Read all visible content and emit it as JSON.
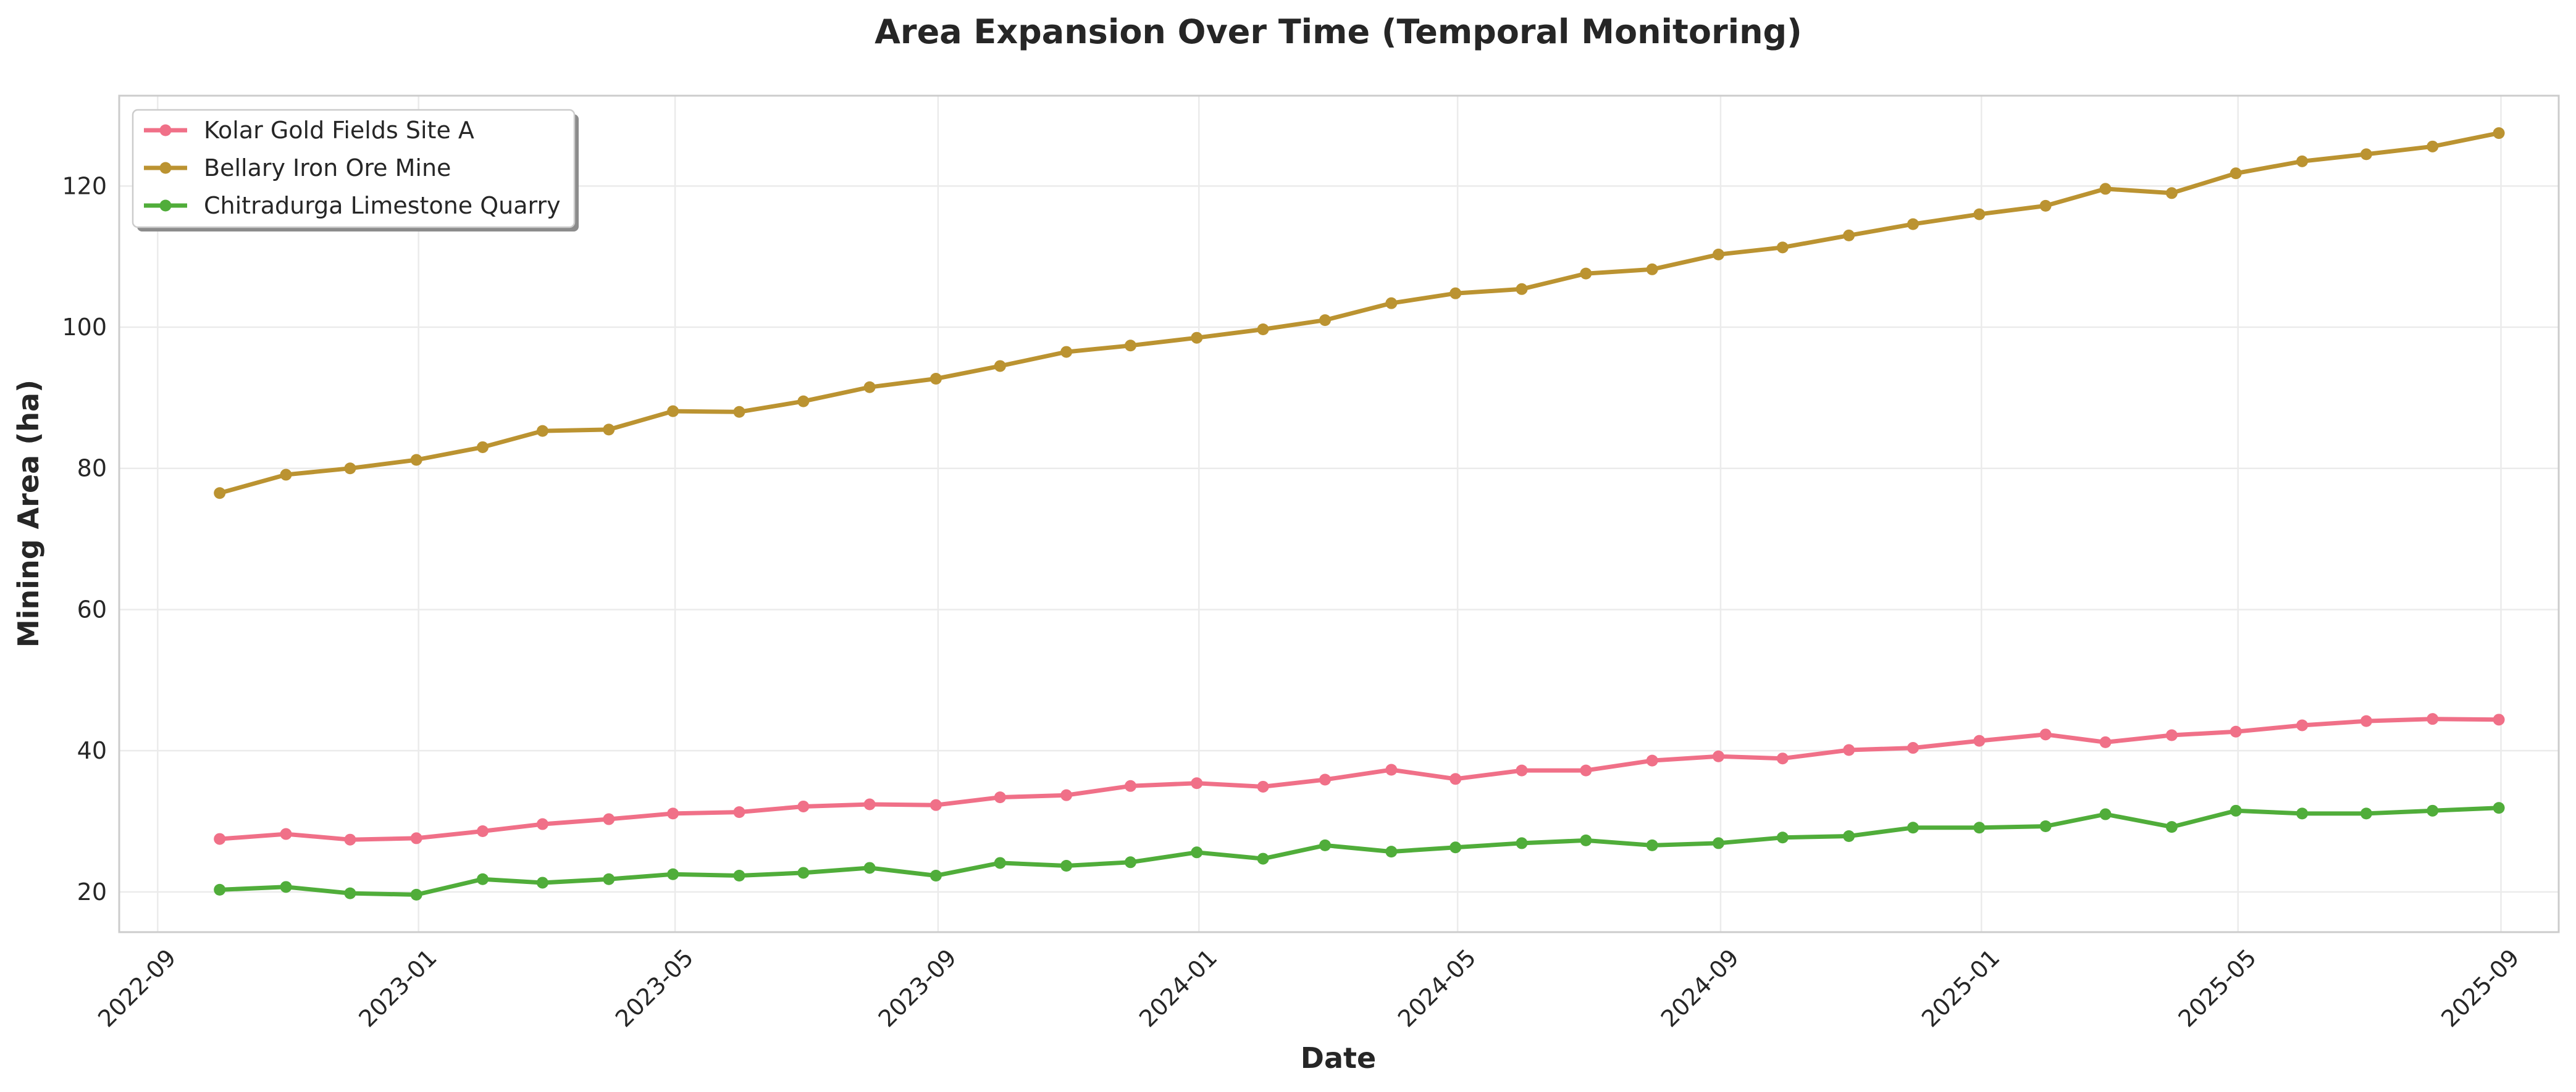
{
  "chart_data": {
    "type": "line",
    "title": "Area Expansion Over Time (Temporal Monitoring)",
    "xlabel": "Date",
    "ylabel": "Mining Area (ha)",
    "x_type": "date",
    "xlim": [
      "2022-08-14",
      "2025-09-28"
    ],
    "ylim": [
      14.3,
      132.8
    ],
    "x_ticks": [
      "2022-09",
      "2023-01",
      "2023-05",
      "2023-09",
      "2024-01",
      "2024-05",
      "2024-09",
      "2025-01",
      "2025-05",
      "2025-09"
    ],
    "y_ticks": [
      20,
      40,
      60,
      80,
      100,
      120
    ],
    "grid": true,
    "legend_position": "top-left",
    "x": [
      "2022-09-30",
      "2022-10-31",
      "2022-11-30",
      "2022-12-31",
      "2023-01-31",
      "2023-02-28",
      "2023-03-31",
      "2023-04-30",
      "2023-05-31",
      "2023-06-30",
      "2023-07-31",
      "2023-08-31",
      "2023-09-30",
      "2023-10-31",
      "2023-11-30",
      "2023-12-31",
      "2024-01-31",
      "2024-02-29",
      "2024-03-31",
      "2024-04-30",
      "2024-05-31",
      "2024-06-30",
      "2024-07-31",
      "2024-08-31",
      "2024-09-30",
      "2024-10-31",
      "2024-11-30",
      "2024-12-31",
      "2025-01-31",
      "2025-02-28",
      "2025-03-31",
      "2025-04-30",
      "2025-05-31",
      "2025-06-30",
      "2025-07-31",
      "2025-08-31"
    ],
    "series": [
      {
        "name": "Kolar Gold Fields Site A",
        "color": "#f07088",
        "values": [
          27.5,
          28.2,
          27.4,
          27.6,
          28.6,
          29.6,
          30.3,
          31.1,
          31.3,
          32.1,
          32.4,
          32.3,
          33.4,
          33.7,
          35.0,
          35.4,
          34.9,
          35.9,
          37.3,
          36.0,
          37.2,
          37.2,
          38.6,
          39.2,
          38.9,
          40.1,
          40.4,
          41.4,
          42.3,
          41.2,
          42.2,
          42.7,
          43.6,
          44.2,
          44.5,
          44.4
        ]
      },
      {
        "name": "Bellary Iron Ore Mine",
        "color": "#bb9331",
        "values": [
          76.5,
          79.1,
          80.0,
          81.2,
          83.0,
          85.3,
          85.5,
          88.1,
          88.0,
          89.5,
          91.5,
          92.7,
          94.5,
          96.5,
          97.4,
          98.5,
          99.7,
          101.0,
          103.4,
          104.8,
          105.4,
          107.6,
          108.2,
          110.3,
          111.3,
          113.0,
          114.6,
          116.0,
          117.2,
          119.6,
          119.0,
          121.8,
          123.5,
          124.5,
          125.6,
          127.5
        ]
      },
      {
        "name": "Chitradurga Limestone Quarry",
        "color": "#50ad3a",
        "values": [
          20.3,
          20.7,
          19.8,
          19.6,
          21.8,
          21.3,
          21.8,
          22.5,
          22.3,
          22.7,
          23.4,
          22.3,
          24.1,
          23.7,
          24.2,
          25.6,
          24.7,
          26.6,
          25.7,
          26.3,
          26.9,
          27.3,
          26.6,
          26.9,
          27.7,
          27.9,
          29.1,
          29.1,
          29.3,
          31.0,
          29.2,
          31.5,
          31.1,
          31.1,
          31.5,
          31.9
        ]
      }
    ]
  }
}
